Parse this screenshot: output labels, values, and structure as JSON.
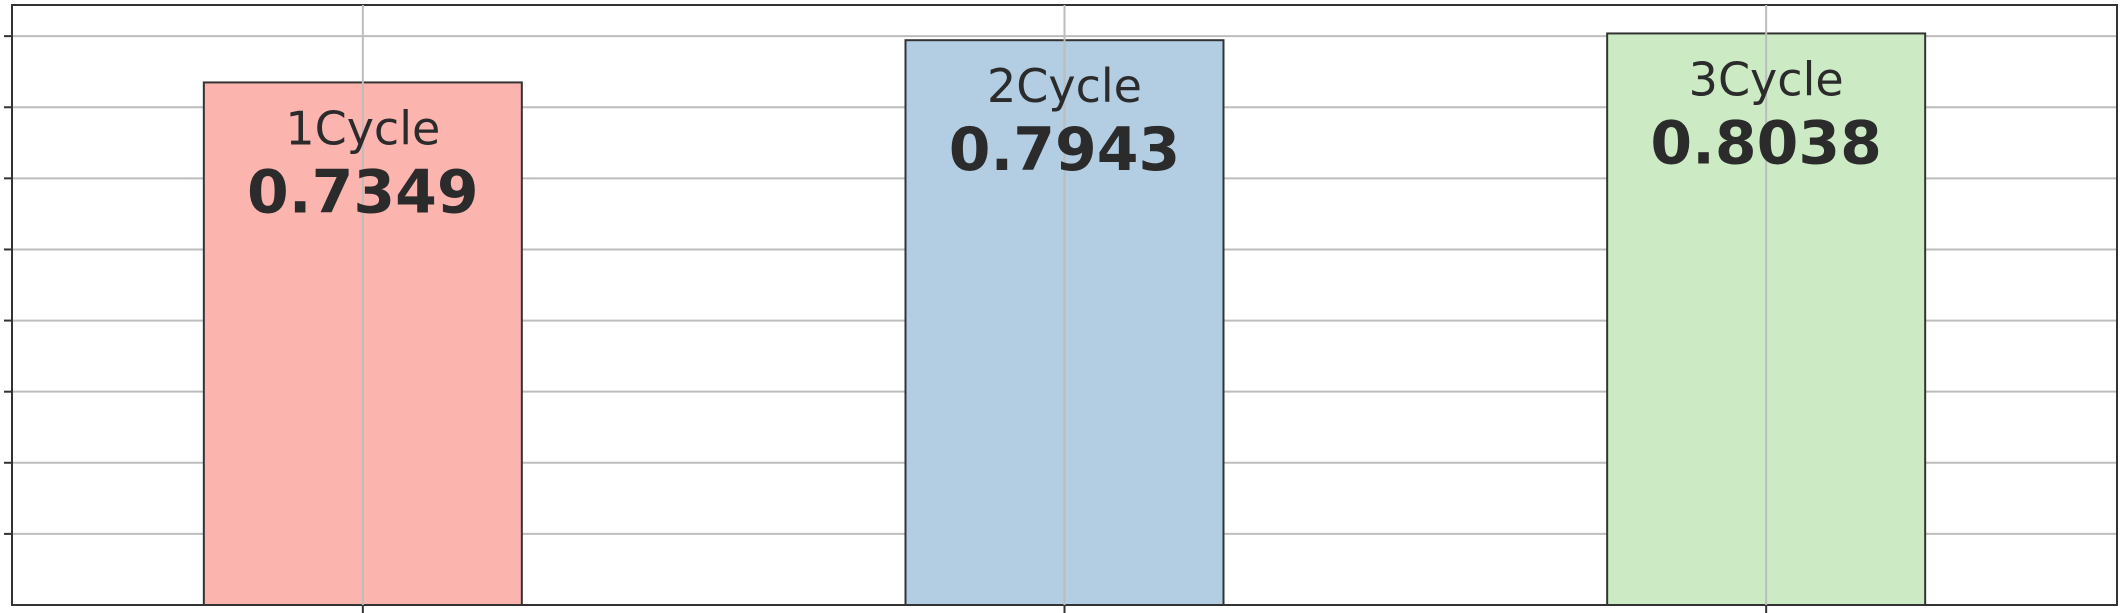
{
  "chart_data": {
    "type": "bar",
    "categories": [
      "1Cycle",
      "2Cycle",
      "3Cycle"
    ],
    "values": [
      0.7349,
      0.7943,
      0.8038
    ],
    "value_labels": [
      "0.7349",
      "0.7943",
      "0.8038"
    ],
    "colors": [
      "#fbb4ae",
      "#b3cde3",
      "#ccebc5"
    ],
    "ylim": [
      0,
      0.8438
    ],
    "y_tick_step": 0.1,
    "grid": true,
    "legend": "none"
  }
}
